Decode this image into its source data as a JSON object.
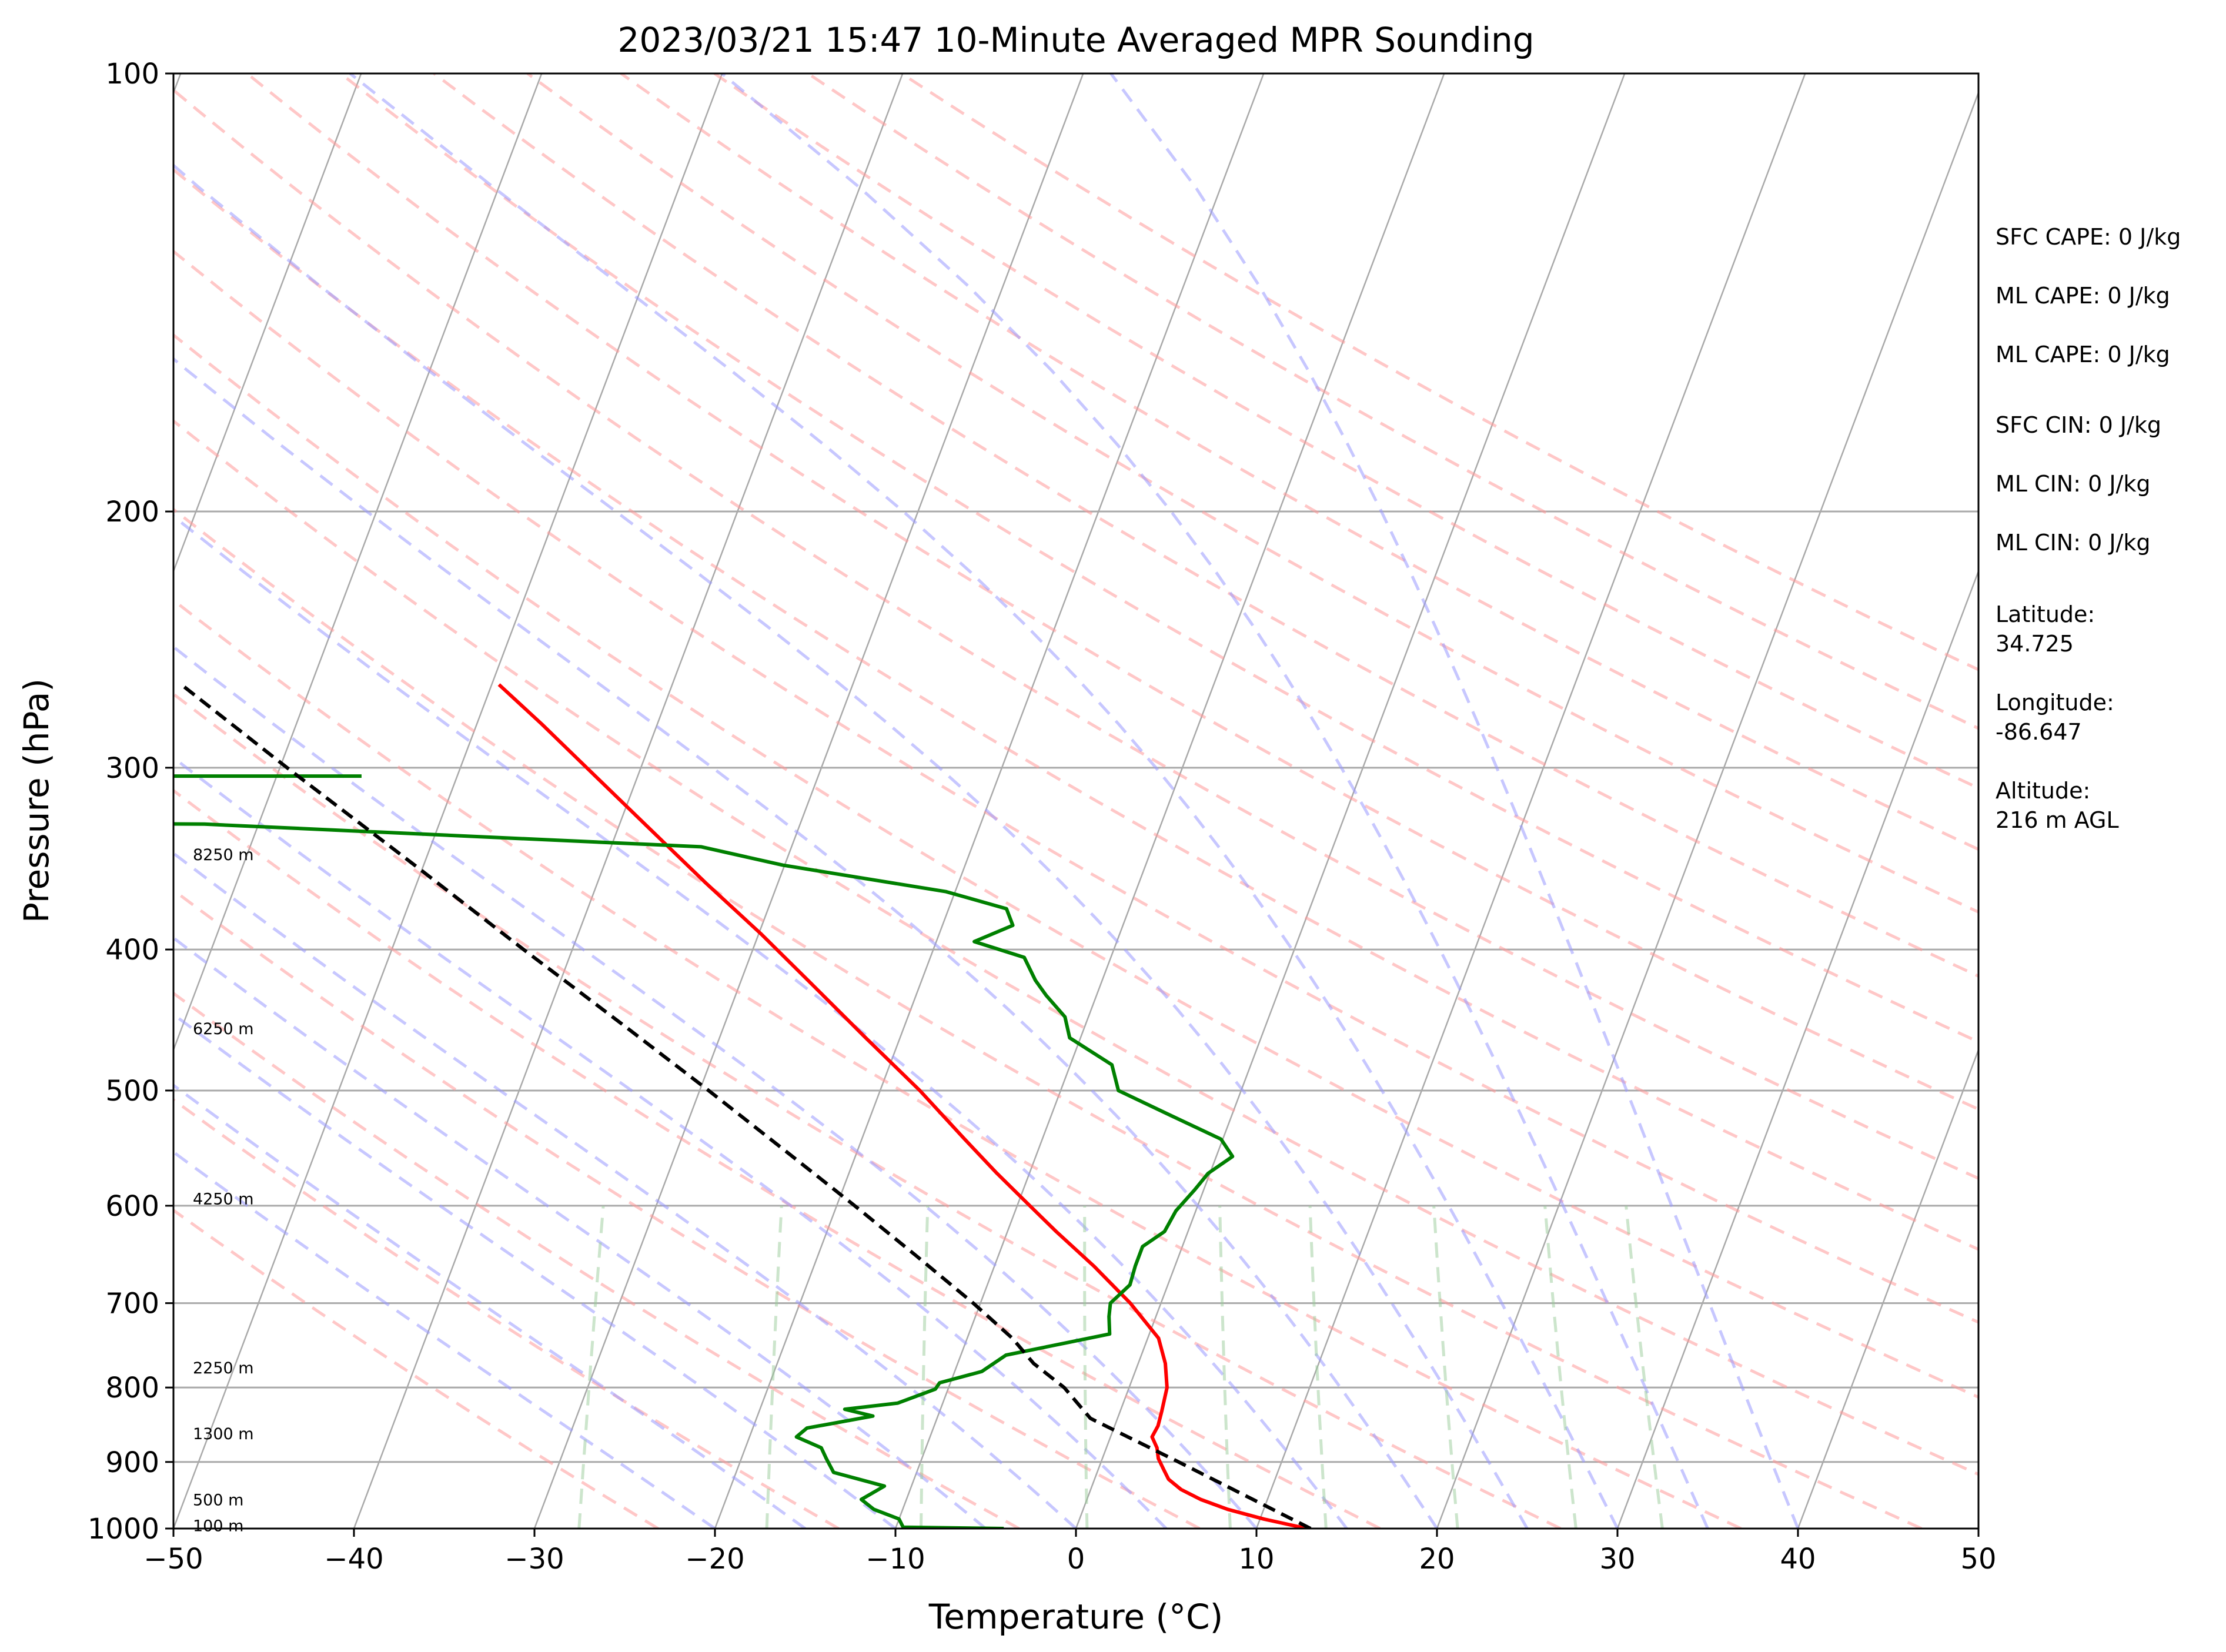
{
  "colors": {
    "temperature": "#ff0000",
    "dewpoint": "#008000",
    "parcel": "#000000",
    "isotherm": "#a9a9a9",
    "isobar": "#a9a9a9",
    "dry_adiabat": "#ff9999",
    "moist_adiabat": "#9999ff",
    "mixing_ratio": "#99cc99"
  },
  "chart_data": {
    "type": "line",
    "subtype": "skew-T log-P sounding",
    "title": "2023/03/21 15:47 10-Minute Averaged MPR Sounding",
    "xlabel": "Temperature (°C)",
    "ylabel": "Pressure (hPa)",
    "xlim": [
      -50,
      50
    ],
    "ylim": [
      1000,
      100
    ],
    "y_scale": "log",
    "grid": true,
    "x_ticks": [
      "−50",
      "−40",
      "−30",
      "−20",
      "−10",
      "0",
      "10",
      "20",
      "30",
      "40",
      "50"
    ],
    "y_ticks": [
      {
        "p": 100,
        "label": "100"
      },
      {
        "p": 200,
        "label": "200"
      },
      {
        "p": 300,
        "label": "300"
      },
      {
        "p": 400,
        "label": "400"
      },
      {
        "p": 500,
        "label": "500"
      },
      {
        "p": 600,
        "label": "600"
      },
      {
        "p": 700,
        "label": "700"
      },
      {
        "p": 800,
        "label": "800"
      },
      {
        "p": 900,
        "label": "900"
      },
      {
        "p": 1000,
        "label": "1000"
      }
    ],
    "height_labels": [
      {
        "p": 995,
        "label": "100 m"
      },
      {
        "p": 955,
        "label": "500 m"
      },
      {
        "p": 860,
        "label": "1300 m"
      },
      {
        "p": 775,
        "label": "2250 m"
      },
      {
        "p": 593,
        "label": "4250 m"
      },
      {
        "p": 453,
        "label": "6250 m"
      },
      {
        "p": 344,
        "label": "8250 m"
      }
    ],
    "series": [
      {
        "key": "temperature",
        "points": [
          {
            "p": 1000,
            "t": 12.8
          },
          {
            "p": 985,
            "t": 10.2
          },
          {
            "p": 970,
            "t": 8.0
          },
          {
            "p": 955,
            "t": 6.3
          },
          {
            "p": 940,
            "t": 5.0
          },
          {
            "p": 925,
            "t": 4.1
          },
          {
            "p": 910,
            "t": 3.6
          },
          {
            "p": 895,
            "t": 3.1
          },
          {
            "p": 880,
            "t": 2.8
          },
          {
            "p": 865,
            "t": 2.3
          },
          {
            "p": 850,
            "t": 2.4
          },
          {
            "p": 830,
            "t": 2.3
          },
          {
            "p": 800,
            "t": 2.1
          },
          {
            "p": 770,
            "t": 1.5
          },
          {
            "p": 740,
            "t": 0.6
          },
          {
            "p": 700,
            "t": -1.7
          },
          {
            "p": 660,
            "t": -4.5
          },
          {
            "p": 625,
            "t": -7.3
          },
          {
            "p": 600,
            "t": -9.3
          },
          {
            "p": 570,
            "t": -11.8
          },
          {
            "p": 540,
            "t": -14.3
          },
          {
            "p": 500,
            "t": -17.8
          },
          {
            "p": 460,
            "t": -21.9
          },
          {
            "p": 420,
            "t": -26.3
          },
          {
            "p": 390,
            "t": -29.9
          },
          {
            "p": 360,
            "t": -34.0
          },
          {
            "p": 330,
            "t": -38.3
          },
          {
            "p": 300,
            "t": -43.0
          },
          {
            "p": 280,
            "t": -46.4
          },
          {
            "p": 263,
            "t": -49.6
          }
        ]
      },
      {
        "key": "dewpoint",
        "points": [
          {
            "p": 1000,
            "t": -4
          },
          {
            "p": 998,
            "t": -9.6
          },
          {
            "p": 985,
            "t": -10.0
          },
          {
            "p": 970,
            "t": -11.6
          },
          {
            "p": 955,
            "t": -12.5
          },
          {
            "p": 935,
            "t": -11.5
          },
          {
            "p": 915,
            "t": -14.6
          },
          {
            "p": 895,
            "t": -15.3
          },
          {
            "p": 880,
            "t": -15.8
          },
          {
            "p": 865,
            "t": -17.4
          },
          {
            "p": 853,
            "t": -17.0
          },
          {
            "p": 837,
            "t": -13.6
          },
          {
            "p": 828,
            "t": -15.3
          },
          {
            "p": 820,
            "t": -12.5
          },
          {
            "p": 802,
            "t": -10.7
          },
          {
            "p": 794,
            "t": -10.6
          },
          {
            "p": 780,
            "t": -8.5
          },
          {
            "p": 760,
            "t": -7.5
          },
          {
            "p": 735,
            "t": -2.2
          },
          {
            "p": 715,
            "t": -2.6
          },
          {
            "p": 700,
            "t": -2.8
          },
          {
            "p": 680,
            "t": -2.1
          },
          {
            "p": 660,
            "t": -2.2
          },
          {
            "p": 640,
            "t": -2.2
          },
          {
            "p": 625,
            "t": -1.3
          },
          {
            "p": 605,
            "t": -1.1
          },
          {
            "p": 585,
            "t": -0.5
          },
          {
            "p": 570,
            "t": -0.1
          },
          {
            "p": 555,
            "t": 0.9
          },
          {
            "p": 540,
            "t": -0.1
          },
          {
            "p": 520,
            "t": -3.4
          },
          {
            "p": 500,
            "t": -6.8
          },
          {
            "p": 480,
            "t": -7.7
          },
          {
            "p": 460,
            "t": -10.6
          },
          {
            "p": 445,
            "t": -11.3
          },
          {
            "p": 430,
            "t": -12.8
          },
          {
            "p": 420,
            "t": -13.7
          },
          {
            "p": 405,
            "t": -14.8
          },
          {
            "p": 395,
            "t": -17.9
          },
          {
            "p": 385,
            "t": -16.1
          },
          {
            "p": 375,
            "t": -16.8
          },
          {
            "p": 365,
            "t": -20.5
          },
          {
            "p": 350,
            "t": -30.1
          },
          {
            "p": 340,
            "t": -35.0
          },
          {
            "p": 328,
            "t": -63.0
          },
          {
            "p": 327,
            "t": -80.0
          }
        ]
      },
      {
        "key": "parcel",
        "points": [
          {
            "p": 1000,
            "t": 13.0
          },
          {
            "p": 900,
            "t": 4.3
          },
          {
            "p": 840,
            "t": -1.5
          },
          {
            "p": 800,
            "t": -3.6
          },
          {
            "p": 770,
            "t": -5.8
          },
          {
            "p": 740,
            "t": -7.5
          },
          {
            "p": 700,
            "t": -10.4
          },
          {
            "p": 650,
            "t": -14.5
          },
          {
            "p": 600,
            "t": -19.0
          },
          {
            "p": 550,
            "t": -24.0
          },
          {
            "p": 500,
            "t": -29.5
          },
          {
            "p": 450,
            "t": -35.7
          },
          {
            "p": 400,
            "t": -42.7
          },
          {
            "p": 350,
            "t": -50.5
          },
          {
            "p": 300,
            "t": -59.6
          },
          {
            "p": 263,
            "t": -67.2
          }
        ]
      }
    ],
    "barbs_stub": [
      {
        "p": 263,
        "t_end": -70.0
      },
      {
        "p": 304,
        "t_end": -55.3
      }
    ],
    "stats": [
      "SFC CAPE: 0 J/kg",
      "ML CAPE: 0 J/kg",
      "ML CAPE: 0 J/kg",
      "SFC CIN: 0 J/kg",
      "ML CIN: 0 J/kg",
      "ML CIN: 0 J/kg",
      "Latitude:",
      "34.725",
      "Longitude:",
      "-86.647",
      "Altitude:",
      "216 m AGL"
    ]
  }
}
